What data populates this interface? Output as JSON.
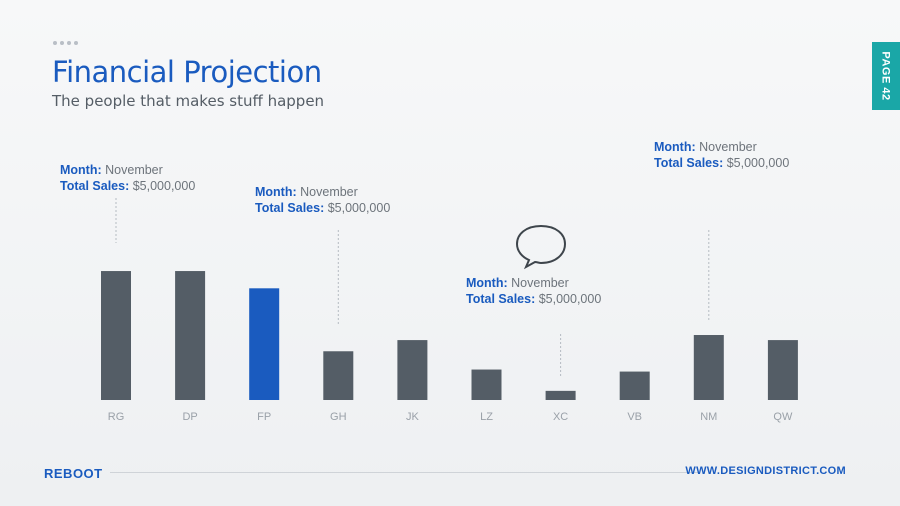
{
  "header": {
    "title": "Financial Projection",
    "subtitle": "The people that makes stuff happen",
    "page_tab": "PAGE 42"
  },
  "chart_data": {
    "type": "bar",
    "title": "Financial Projection",
    "categories": [
      "RG",
      "DP",
      "FP",
      "GH",
      "JK",
      "LZ",
      "XC",
      "VB",
      "NM",
      "QW"
    ],
    "values": [
      127,
      127,
      110,
      48,
      59,
      30,
      9,
      28,
      64,
      59
    ],
    "highlight_index": 2,
    "ylim": [
      0,
      130
    ],
    "grid": false,
    "colors": {
      "bar": "#545d66",
      "highlight": "#1a5bbf",
      "tick": "#9aa1a8",
      "leader": "#b5bbc2"
    },
    "annotations": [
      {
        "category": "RG",
        "month_label": "Month:",
        "month": "November",
        "sales_label": "Total Sales:",
        "sales": "$5,000,000"
      },
      {
        "category": "GH",
        "month_label": "Month:",
        "month": "November",
        "sales_label": "Total Sales:",
        "sales": "$5,000,000"
      },
      {
        "category": "XC",
        "month_label": "Month:",
        "month": "November",
        "sales_label": "Total Sales:",
        "sales": "$5,000,000",
        "icon": "speech-bubble-icon"
      },
      {
        "category": "NM",
        "month_label": "Month:",
        "month": "November",
        "sales_label": "Total Sales:",
        "sales": "$5,000,000"
      }
    ]
  },
  "footer": {
    "brand": "REBOOT",
    "website": "WWW.DESIGNDISTRICT.COM"
  }
}
